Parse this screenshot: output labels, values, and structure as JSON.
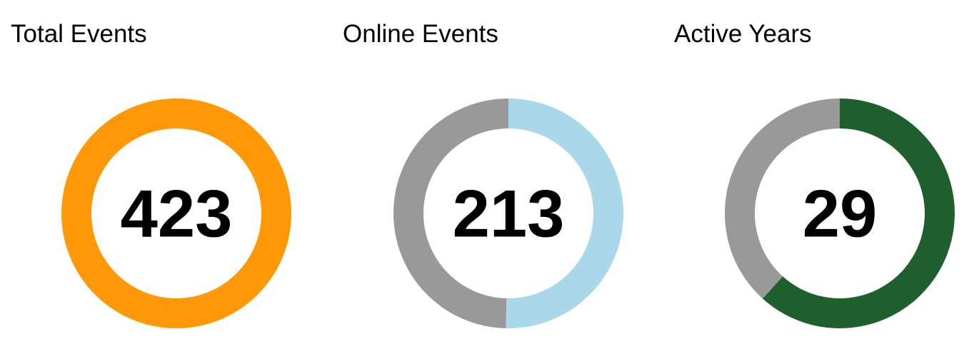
{
  "chart_data": [
    {
      "type": "pie",
      "title": "Total Events",
      "value_label": "423",
      "slices": [
        {
          "value": 423,
          "color": "#FF9807"
        }
      ]
    },
    {
      "type": "pie",
      "title": "Online Events",
      "value_label": "213",
      "slices": [
        {
          "value": 213,
          "color": "#A8D8EA"
        },
        {
          "value": 210,
          "color": "#999999"
        }
      ]
    },
    {
      "type": "pie",
      "title": "Active Years",
      "value_label": "29",
      "slices": [
        {
          "value": 29,
          "color": "#1F5F2E"
        },
        {
          "value": 18,
          "color": "#999999"
        }
      ]
    }
  ]
}
